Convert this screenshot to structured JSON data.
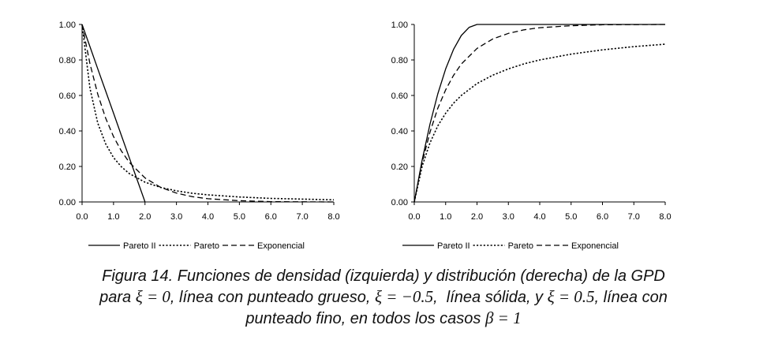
{
  "chart_data": [
    {
      "type": "line",
      "panel": "left",
      "title": "",
      "xlabel": "",
      "ylabel": "",
      "xlim": [
        0,
        8
      ],
      "ylim": [
        0,
        1
      ],
      "x_ticks": [
        "0.0",
        "1.0",
        "2.0",
        "3.0",
        "4.0",
        "5.0",
        "6.0",
        "7.0",
        "8.0"
      ],
      "y_ticks": [
        "0.00",
        "0.20",
        "0.40",
        "0.60",
        "0.80",
        "1.00"
      ],
      "grid": false,
      "legend_position": "bottom",
      "series": [
        {
          "name": "Pareto II",
          "style": "solid",
          "x": [
            0,
            0.25,
            0.5,
            0.75,
            1.0,
            1.25,
            1.5,
            1.75,
            2.0
          ],
          "y": [
            1.0,
            0.875,
            0.75,
            0.625,
            0.5,
            0.375,
            0.25,
            0.125,
            0.0
          ]
        },
        {
          "name": "Pareto",
          "style": "dotted",
          "x": [
            0,
            0.25,
            0.5,
            0.75,
            1.0,
            1.25,
            1.5,
            2.0,
            2.5,
            3.0,
            3.5,
            4.0,
            5.0,
            6.0,
            7.0,
            8.0
          ],
          "y": [
            1.0,
            0.64,
            0.444,
            0.327,
            0.25,
            0.198,
            0.16,
            0.111,
            0.082,
            0.0625,
            0.049,
            0.04,
            0.028,
            0.02,
            0.016,
            0.012
          ]
        },
        {
          "name": "Exponencial",
          "style": "dashed",
          "x": [
            0,
            0.25,
            0.5,
            0.75,
            1.0,
            1.25,
            1.5,
            2.0,
            2.5,
            3.0,
            3.5,
            4.0,
            5.0,
            6.0,
            7.0,
            8.0
          ],
          "y": [
            1.0,
            0.779,
            0.607,
            0.472,
            0.368,
            0.287,
            0.223,
            0.135,
            0.082,
            0.05,
            0.03,
            0.018,
            0.007,
            0.002,
            0.001,
            0.0
          ]
        }
      ]
    },
    {
      "type": "line",
      "panel": "right",
      "title": "",
      "xlabel": "",
      "ylabel": "",
      "xlim": [
        0,
        8
      ],
      "ylim": [
        0,
        1
      ],
      "x_ticks": [
        "0.0",
        "1.0",
        "2.0",
        "3.0",
        "4.0",
        "5.0",
        "6.0",
        "7.0",
        "8.0"
      ],
      "y_ticks": [
        "0.00",
        "0.20",
        "0.40",
        "0.60",
        "0.80",
        "1.00"
      ],
      "grid": false,
      "legend_position": "bottom",
      "series": [
        {
          "name": "Pareto II",
          "style": "solid",
          "x": [
            0,
            0.25,
            0.5,
            0.75,
            1.0,
            1.25,
            1.5,
            1.75,
            2.0,
            3.0,
            4.0,
            5.0,
            6.0,
            7.0,
            8.0
          ],
          "y": [
            0.0,
            0.234,
            0.438,
            0.609,
            0.75,
            0.859,
            0.938,
            0.984,
            1.0,
            1.0,
            1.0,
            1.0,
            1.0,
            1.0,
            1.0
          ]
        },
        {
          "name": "Pareto",
          "style": "dotted",
          "x": [
            0,
            0.25,
            0.5,
            0.75,
            1.0,
            1.25,
            1.5,
            2.0,
            2.5,
            3.0,
            3.5,
            4.0,
            5.0,
            6.0,
            7.0,
            8.0
          ],
          "y": [
            0.0,
            0.2,
            0.333,
            0.429,
            0.5,
            0.556,
            0.6,
            0.667,
            0.714,
            0.75,
            0.778,
            0.8,
            0.833,
            0.857,
            0.875,
            0.889
          ]
        },
        {
          "name": "Exponencial",
          "style": "dashed",
          "x": [
            0,
            0.25,
            0.5,
            0.75,
            1.0,
            1.25,
            1.5,
            2.0,
            2.5,
            3.0,
            3.5,
            4.0,
            5.0,
            6.0,
            7.0,
            8.0
          ],
          "y": [
            0.0,
            0.221,
            0.393,
            0.528,
            0.632,
            0.713,
            0.777,
            0.865,
            0.918,
            0.95,
            0.97,
            0.982,
            0.993,
            0.998,
            0.999,
            1.0
          ]
        }
      ]
    }
  ],
  "caption": {
    "line1": "Figura 14. Funciones de densidad (izquierda) y distribución (derecha) de la GPD",
    "line2_a": "para ",
    "line2_math1": "ξ = 0",
    "line2_b": ", línea con punteado grueso, ",
    "line2_math2": "ξ = −0.5",
    "line2_c": ",  línea sólida, y ",
    "line2_math3": "ξ = 0.5",
    "line2_d": ", línea con",
    "line3_a": "punteado fino, en todos los casos ",
    "line3_math": "β = 1"
  }
}
